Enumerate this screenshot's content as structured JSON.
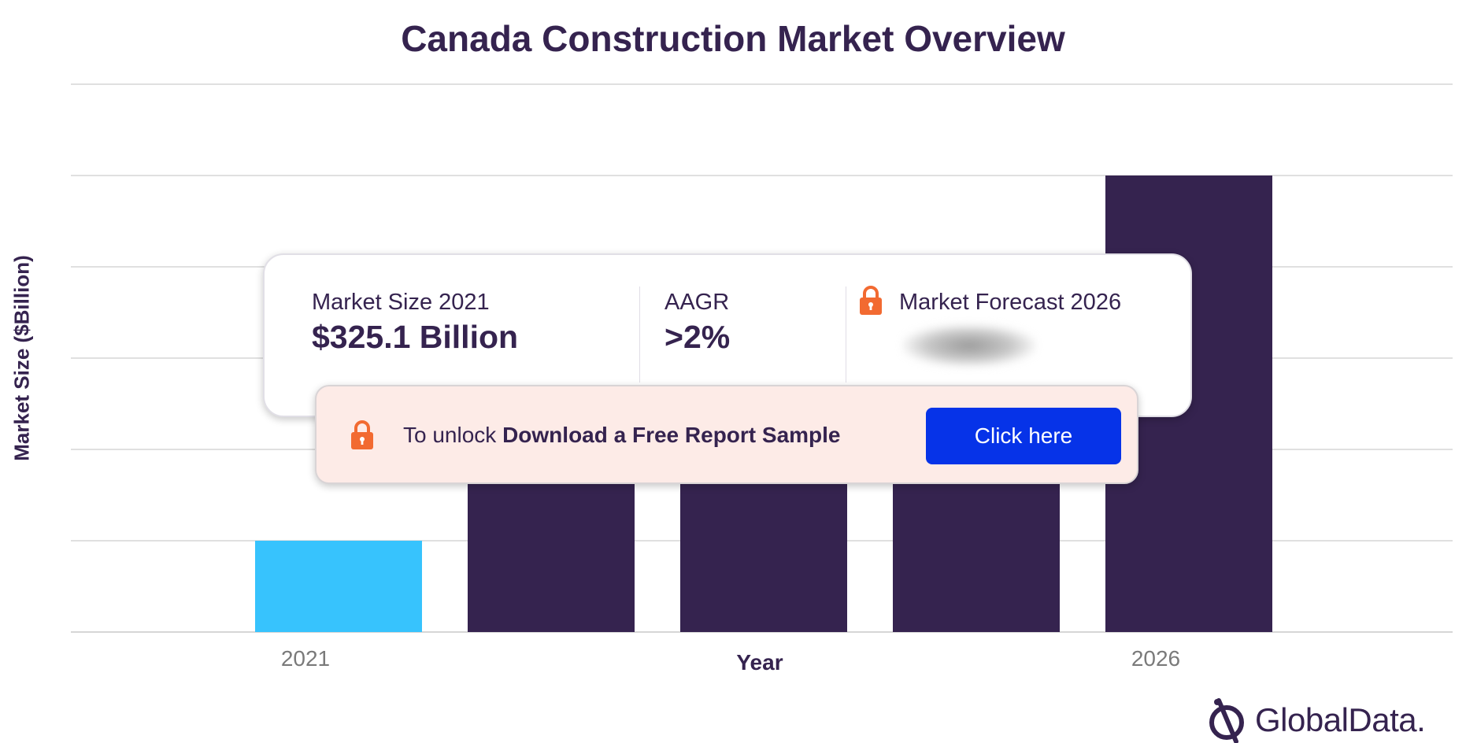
{
  "chart_data": {
    "type": "bar",
    "title": "Canada Construction Market Overview",
    "xlabel": "Year",
    "ylabel": "Market Size ($Billion)",
    "categories": [
      "2021",
      "",
      "",
      "",
      "2026"
    ],
    "values": [
      325.1,
      null,
      null,
      null,
      null
    ],
    "visible_tick_labels": [
      "2021",
      "2026"
    ],
    "grid": true,
    "colors": {
      "actual": "#37c3fd",
      "forecast": "#35234f",
      "grid": "#d6d6d6",
      "tick": "#7a7a7a"
    }
  },
  "summary": {
    "market_size_label": "Market Size 2021",
    "market_size_value": "$325.1 Billion",
    "aagr_label": "AAGR",
    "aagr_value": ">2%",
    "forecast_label": "Market Forecast 2026"
  },
  "unlock": {
    "prefix": "To unlock ",
    "bold_text": "Download a Free Report Sample",
    "button_label": "Click here"
  },
  "branding": {
    "logo_text": "GlobalData."
  },
  "icons": {
    "lock": "lock-icon",
    "logo": "globaldata-logo-icon"
  }
}
